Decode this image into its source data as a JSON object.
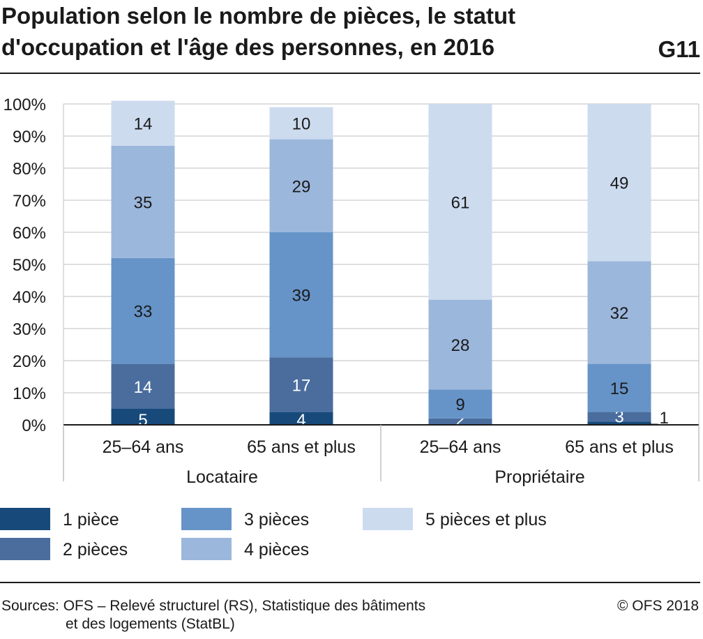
{
  "title_line1": "Population selon le nombre de pièces, le statut",
  "title_line2": "d'occupation et l'âge des personnes, en 2016",
  "figure_id": "G11",
  "source_line1": "Sources: OFS – Relevé structurel (RS), Statistique des bâtiments",
  "source_line2": "et des logements (StatBL)",
  "copyright": "© OFS 2018",
  "colors": {
    "1 pièce": "#174a7a",
    "2 pièces": "#4a6d9e",
    "3 pièces": "#6694c8",
    "4 pièces": "#9cb7dc",
    "5 pièces et plus": "#cddbef",
    "grid": "#bfbfbf",
    "axis": "#1a1a1a"
  },
  "legend": [
    {
      "label": "1 pièce",
      "color": "#174a7a"
    },
    {
      "label": "3 pièces",
      "color": "#6694c8"
    },
    {
      "label": "5 pièces et plus",
      "color": "#cddbef"
    },
    {
      "label": "2 pièces",
      "color": "#4a6d9e"
    },
    {
      "label": "4 pièces",
      "color": "#9cb7dc"
    }
  ],
  "chart_data": {
    "type": "bar",
    "stacked": true,
    "percent": true,
    "title": "Population selon le nombre de pièces, le statut d'occupation et l'âge des personnes, en 2016",
    "categories": [
      "25–64 ans",
      "65 ans et plus",
      "25–64 ans",
      "65 ans et plus"
    ],
    "groups": [
      {
        "label": "Locataire",
        "categories": [
          "25–64 ans",
          "65 ans et plus"
        ]
      },
      {
        "label": "Propriétaire",
        "categories": [
          "25–64 ans",
          "65 ans et plus"
        ]
      }
    ],
    "series": [
      {
        "name": "1 pièce",
        "values": [
          5,
          4,
          0,
          1
        ]
      },
      {
        "name": "2 pièces",
        "values": [
          14,
          17,
          2,
          3
        ]
      },
      {
        "name": "3 pièces",
        "values": [
          33,
          39,
          9,
          15
        ]
      },
      {
        "name": "4 pièces",
        "values": [
          35,
          29,
          28,
          32
        ]
      },
      {
        "name": "5 pièces et plus",
        "values": [
          14,
          10,
          61,
          49
        ]
      }
    ],
    "y_ticks": [
      "0%",
      "10%",
      "20%",
      "30%",
      "40%",
      "50%",
      "60%",
      "70%",
      "80%",
      "90%",
      "100%"
    ],
    "ylim": [
      0,
      100
    ],
    "grid": true,
    "legend_position": "bottom"
  }
}
